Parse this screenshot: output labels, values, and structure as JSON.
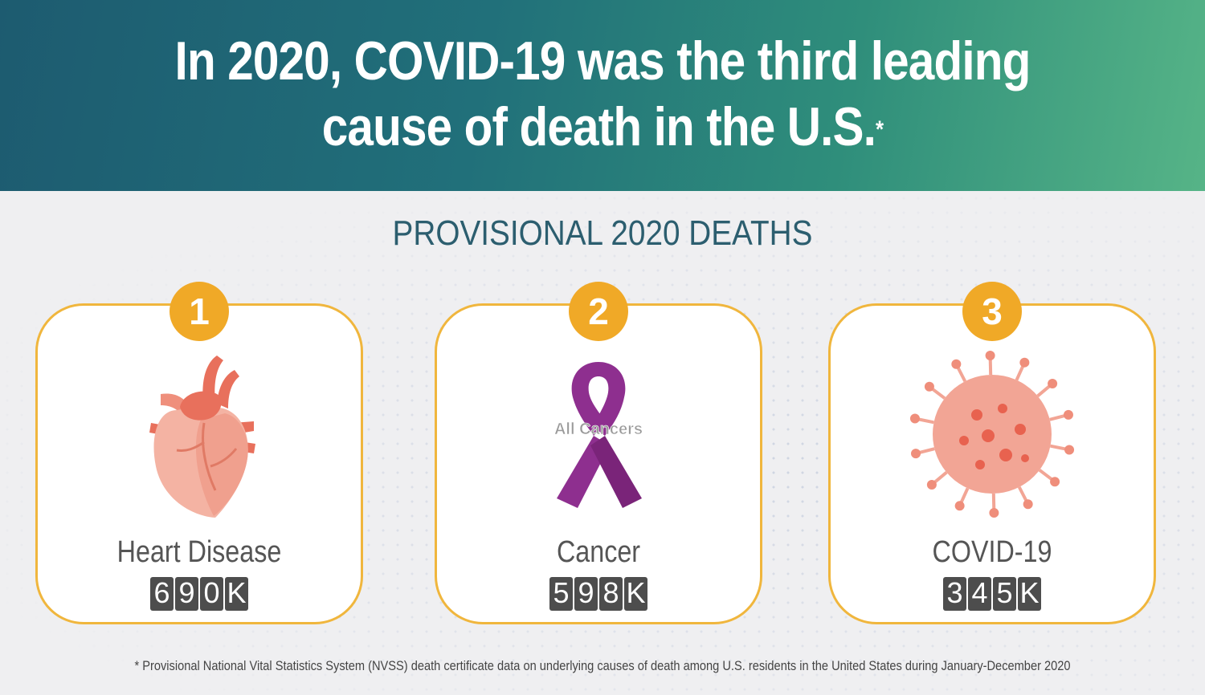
{
  "header": {
    "title_line1": "In 2020, COVID-19 was the third leading",
    "title_line2": "cause of death in the U.S.",
    "title_marker": "*",
    "gradient_colors": [
      "#1d5b70",
      "#56b487"
    ]
  },
  "subtitle": "PROVISIONAL 2020 DEATHS",
  "accent_color": "#f0b63d",
  "causes": [
    {
      "rank": "1",
      "name": "Heart Disease",
      "deaths": "690K",
      "icon": "heart-icon"
    },
    {
      "rank": "2",
      "name": "Cancer",
      "deaths": "598K",
      "icon": "cancer-ribbon-icon",
      "ribbon_text": "All Cancers"
    },
    {
      "rank": "3",
      "name": "COVID-19",
      "deaths": "345K",
      "icon": "virus-icon"
    }
  ],
  "footnote": "* Provisional National Vital Statistics System (NVSS) death certificate data on underlying causes of death among U.S. residents in the United States during January-December 2020"
}
